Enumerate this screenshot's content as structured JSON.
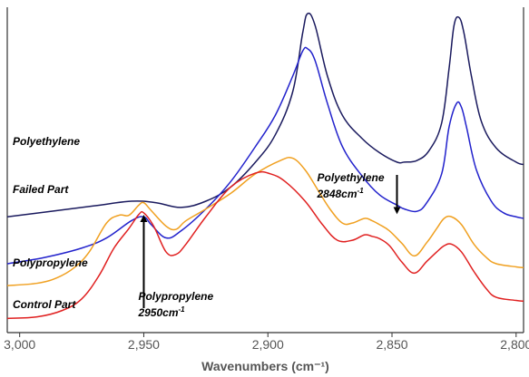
{
  "chart_data": {
    "type": "line",
    "title": "",
    "xlabel": "Wavenumbers (cm⁻¹)",
    "ylabel": "",
    "xlim": [
      3005,
      2797
    ],
    "x_reversed": true,
    "xticks": [
      3000,
      2950,
      2900,
      2850,
      2800
    ],
    "xtick_labels": [
      "3,000",
      "2,950",
      "2,900",
      "2,850",
      "2,800"
    ],
    "grid": false,
    "legend": "none",
    "series_labels": [
      "Polyethylene",
      "Failed Part",
      "Polypropylene",
      "Control Part"
    ],
    "series": [
      {
        "name": "Polyethylene",
        "color": "#1a1a5e",
        "points": [
          [
            3005,
            140
          ],
          [
            2990,
            146
          ],
          [
            2970,
            154
          ],
          [
            2955,
            160
          ],
          [
            2945,
            158
          ],
          [
            2935,
            152
          ],
          [
            2925,
            160
          ],
          [
            2915,
            178
          ],
          [
            2905,
            210
          ],
          [
            2897,
            245
          ],
          [
            2890,
            300
          ],
          [
            2886,
            375
          ],
          [
            2884,
            400
          ],
          [
            2881,
            385
          ],
          [
            2876,
            320
          ],
          [
            2870,
            270
          ],
          [
            2862,
            240
          ],
          [
            2855,
            222
          ],
          [
            2848,
            210
          ],
          [
            2845,
            210
          ],
          [
            2840,
            212
          ],
          [
            2835,
            225
          ],
          [
            2830,
            260
          ],
          [
            2827,
            330
          ],
          [
            2825,
            385
          ],
          [
            2823,
            395
          ],
          [
            2821,
            375
          ],
          [
            2818,
            320
          ],
          [
            2814,
            262
          ],
          [
            2808,
            228
          ],
          [
            2800,
            210
          ],
          [
            2797,
            207
          ]
        ]
      },
      {
        "name": "Failed Part",
        "color": "#2222cc",
        "points": [
          [
            3005,
            80
          ],
          [
            2990,
            88
          ],
          [
            2975,
            100
          ],
          [
            2965,
            113
          ],
          [
            2955,
            135
          ],
          [
            2950,
            140
          ],
          [
            2947,
            130
          ],
          [
            2941,
            113
          ],
          [
            2935,
            122
          ],
          [
            2925,
            150
          ],
          [
            2915,
            185
          ],
          [
            2905,
            230
          ],
          [
            2897,
            270
          ],
          [
            2890,
            320
          ],
          [
            2886,
            352
          ],
          [
            2884,
            355
          ],
          [
            2881,
            340
          ],
          [
            2876,
            285
          ],
          [
            2870,
            230
          ],
          [
            2862,
            192
          ],
          [
            2855,
            168
          ],
          [
            2848,
            155
          ],
          [
            2845,
            150
          ],
          [
            2840,
            147
          ],
          [
            2836,
            158
          ],
          [
            2830,
            195
          ],
          [
            2827,
            255
          ],
          [
            2824,
            285
          ],
          [
            2822,
            280
          ],
          [
            2820,
            255
          ],
          [
            2816,
            200
          ],
          [
            2810,
            160
          ],
          [
            2805,
            145
          ],
          [
            2800,
            140
          ],
          [
            2797,
            138
          ]
        ]
      },
      {
        "name": "Polypropylene",
        "color": "#f0a020",
        "points": [
          [
            3005,
            52
          ],
          [
            2993,
            55
          ],
          [
            2985,
            62
          ],
          [
            2978,
            75
          ],
          [
            2972,
            95
          ],
          [
            2965,
            132
          ],
          [
            2960,
            142
          ],
          [
            2956,
            142
          ],
          [
            2952,
            155
          ],
          [
            2950,
            158
          ],
          [
            2947,
            148
          ],
          [
            2941,
            128
          ],
          [
            2937,
            124
          ],
          [
            2933,
            135
          ],
          [
            2925,
            150
          ],
          [
            2915,
            170
          ],
          [
            2905,
            195
          ],
          [
            2895,
            212
          ],
          [
            2890,
            215
          ],
          [
            2885,
            200
          ],
          [
            2880,
            175
          ],
          [
            2875,
            150
          ],
          [
            2870,
            132
          ],
          [
            2866,
            132
          ],
          [
            2861,
            138
          ],
          [
            2858,
            135
          ],
          [
            2855,
            130
          ],
          [
            2851,
            122
          ],
          [
            2846,
            106
          ],
          [
            2841,
            90
          ],
          [
            2836,
            107
          ],
          [
            2832,
            125
          ],
          [
            2829,
            138
          ],
          [
            2826,
            140
          ],
          [
            2822,
            130
          ],
          [
            2817,
            105
          ],
          [
            2812,
            88
          ],
          [
            2808,
            80
          ],
          [
            2800,
            76
          ],
          [
            2797,
            75
          ]
        ]
      },
      {
        "name": "Control Part",
        "color": "#e02020",
        "points": [
          [
            3005,
            10
          ],
          [
            2993,
            12
          ],
          [
            2983,
            20
          ],
          [
            2975,
            35
          ],
          [
            2968,
            65
          ],
          [
            2962,
            100
          ],
          [
            2956,
            125
          ],
          [
            2952,
            143
          ],
          [
            2950,
            145
          ],
          [
            2946,
            128
          ],
          [
            2941,
            95
          ],
          [
            2937,
            92
          ],
          [
            2933,
            105
          ],
          [
            2925,
            140
          ],
          [
            2915,
            178
          ],
          [
            2905,
            196
          ],
          [
            2899,
            195
          ],
          [
            2893,
            185
          ],
          [
            2885,
            160
          ],
          [
            2878,
            130
          ],
          [
            2872,
            110
          ],
          [
            2866,
            110
          ],
          [
            2861,
            117
          ],
          [
            2858,
            115
          ],
          [
            2855,
            112
          ],
          [
            2851,
            103
          ],
          [
            2846,
            82
          ],
          [
            2841,
            68
          ],
          [
            2836,
            83
          ],
          [
            2832,
            95
          ],
          [
            2829,
            103
          ],
          [
            2826,
            105
          ],
          [
            2822,
            95
          ],
          [
            2817,
            70
          ],
          [
            2812,
            48
          ],
          [
            2808,
            37
          ],
          [
            2800,
            33
          ],
          [
            2797,
            32
          ]
        ]
      }
    ],
    "annotations": [
      {
        "line1": "Polyethylene",
        "line2": "2848cm",
        "superscript": "-1",
        "x": 2848,
        "series": "Failed Part"
      },
      {
        "line1": "Polypropylene",
        "line2": "2950cm",
        "superscript": "-1",
        "x": 2950,
        "series": "Control Part"
      }
    ]
  }
}
